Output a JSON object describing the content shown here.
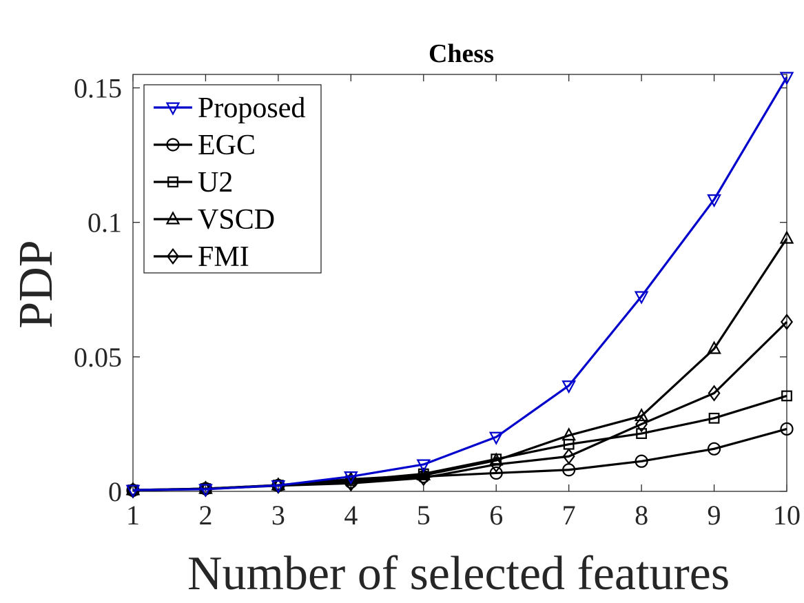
{
  "chart_data": {
    "type": "line",
    "title": "Chess",
    "xlabel": "Number of selected features",
    "ylabel": "PDP",
    "x": [
      1,
      2,
      3,
      4,
      5,
      6,
      7,
      8,
      9,
      10
    ],
    "xlim": [
      1,
      10
    ],
    "ylim": [
      0,
      0.155
    ],
    "x_ticks": [
      "1",
      "2",
      "3",
      "4",
      "5",
      "6",
      "7",
      "8",
      "9",
      "10"
    ],
    "y_ticks": [
      {
        "value": 0,
        "label": "0"
      },
      {
        "value": 0.05,
        "label": "0.05"
      },
      {
        "value": 0.1,
        "label": "0.1"
      },
      {
        "value": 0.15,
        "label": "0.15"
      }
    ],
    "grid": false,
    "legend_position": "top-left",
    "series": [
      {
        "name": "Proposed",
        "marker": "triangle-down",
        "color": "#0000cc",
        "values": [
          0.0005,
          0.0008,
          0.0022,
          0.0055,
          0.01,
          0.0202,
          0.0393,
          0.0725,
          0.1085,
          0.154
        ]
      },
      {
        "name": "EGC",
        "marker": "circle",
        "color": "#000000",
        "values": [
          0.0004,
          0.001,
          0.0022,
          0.0035,
          0.0055,
          0.0068,
          0.008,
          0.0112,
          0.0158,
          0.0232
        ]
      },
      {
        "name": "U2",
        "marker": "square",
        "color": "#000000",
        "values": [
          0.0005,
          0.001,
          0.0023,
          0.004,
          0.0065,
          0.012,
          0.0175,
          0.0215,
          0.0272,
          0.0355
        ]
      },
      {
        "name": "VSCD",
        "marker": "triangle-up",
        "color": "#000000",
        "values": [
          0.0005,
          0.001,
          0.0023,
          0.0045,
          0.006,
          0.0115,
          0.0208,
          0.028,
          0.053,
          0.094
        ]
      },
      {
        "name": "FMI",
        "marker": "diamond",
        "color": "#000000",
        "values": [
          0.0004,
          0.0009,
          0.0021,
          0.003,
          0.005,
          0.01,
          0.013,
          0.025,
          0.0365,
          0.063
        ]
      }
    ]
  }
}
